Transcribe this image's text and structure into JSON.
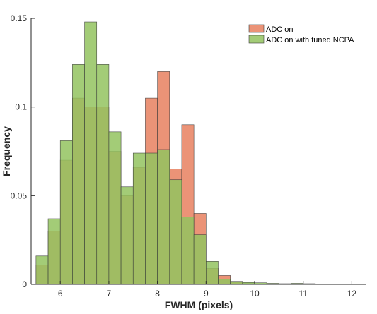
{
  "chart_data": {
    "type": "bar",
    "title": "",
    "xlabel": "FWHM (pixels)",
    "ylabel": "Frequency",
    "xlim": [
      5.4,
      12.3
    ],
    "ylim": [
      0,
      0.15
    ],
    "xticks": [
      6,
      7,
      8,
      9,
      10,
      11,
      12
    ],
    "yticks": [
      0,
      0.05,
      0.1,
      0.15
    ],
    "grid": false,
    "legend": "top-right",
    "bin_edges": [
      5.5,
      5.75,
      6.0,
      6.25,
      6.5,
      6.75,
      7.0,
      7.25,
      7.5,
      7.75,
      8.0,
      8.25,
      8.5,
      8.75,
      9.0,
      9.25,
      9.5,
      9.75,
      10.0,
      10.25,
      10.5,
      10.75,
      11.0,
      11.25,
      11.5,
      11.75,
      12.0
    ],
    "series": [
      {
        "name": "ADC on",
        "color": "#E8805F",
        "values": [
          0.011,
          0.03,
          0.07,
          0.105,
          0.1,
          0.1,
          0.075,
          0.05,
          0.066,
          0.105,
          0.12,
          0.065,
          0.09,
          0.04,
          0.009,
          0.005,
          0.0012,
          0.0005,
          0.0003,
          0.0002,
          0.0002,
          0.0002,
          0.0001,
          0.0001,
          0.0001,
          0.0001
        ]
      },
      {
        "name": "ADC on with tuned NCPA",
        "color": "#93C35F",
        "values": [
          0.016,
          0.037,
          0.081,
          0.124,
          0.148,
          0.124,
          0.086,
          0.055,
          0.074,
          0.074,
          0.076,
          0.059,
          0.038,
          0.028,
          0.013,
          0.003,
          0.0017,
          0.0011,
          0.0009,
          0.0006,
          0.0004,
          0.0006,
          0.0004,
          0.0002,
          0.0002,
          0.0002
        ]
      }
    ]
  }
}
